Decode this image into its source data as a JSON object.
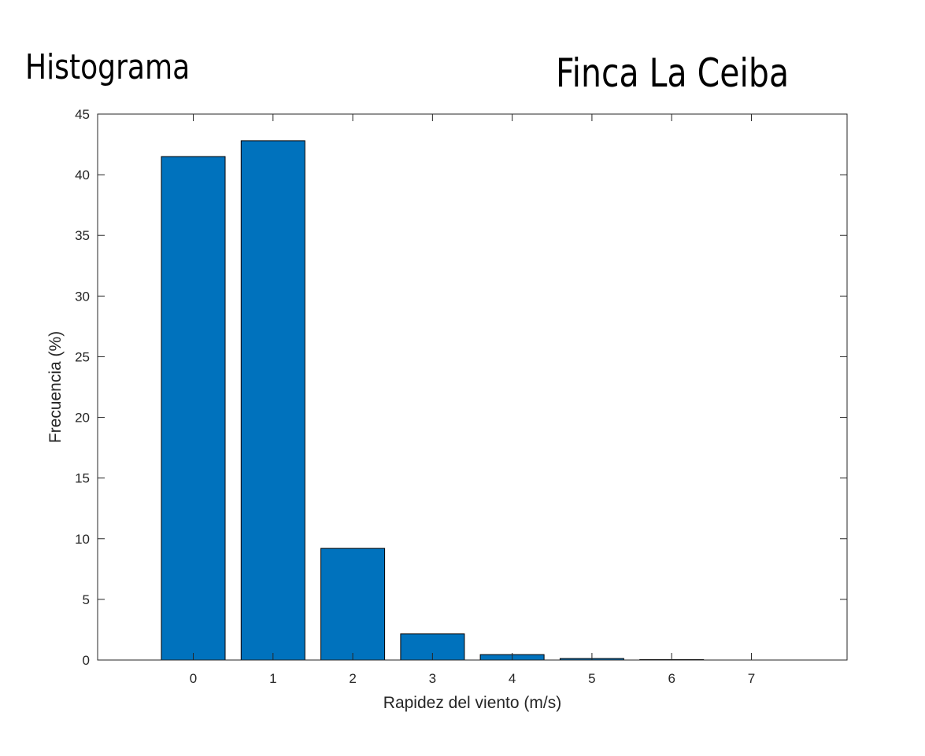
{
  "titles": {
    "left": "Histograma",
    "right": "Finca La Ceiba"
  },
  "chart_data": {
    "type": "bar",
    "categories": [
      "0",
      "1",
      "2",
      "3",
      "4",
      "5",
      "6",
      "7"
    ],
    "x": [
      0,
      1,
      2,
      3,
      4,
      5,
      6,
      7
    ],
    "values": [
      41.5,
      42.8,
      9.2,
      2.15,
      0.45,
      0.12,
      0.03,
      0.0
    ],
    "xlabel": "Rapidez del viento (m/s)",
    "ylabel": "Frecuencia (%)",
    "xlim": [
      -1.2,
      8.2
    ],
    "ylim": [
      0,
      45
    ],
    "yticks": [
      0,
      5,
      10,
      15,
      20,
      25,
      30,
      35,
      40,
      45
    ],
    "xticks": [
      0,
      1,
      2,
      3,
      4,
      5,
      6,
      7
    ],
    "bar_color": "#0072BD",
    "grid": false,
    "legend": "none"
  }
}
